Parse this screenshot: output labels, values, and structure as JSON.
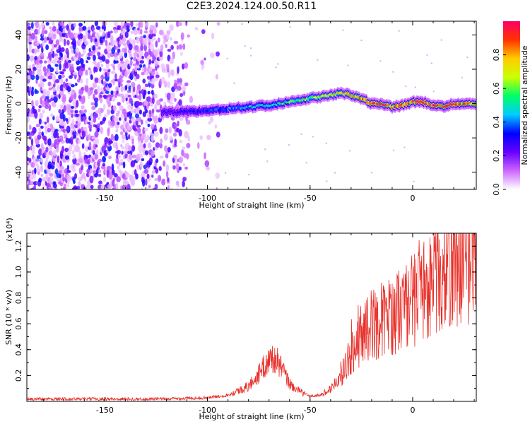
{
  "title": "C2E3.2024.124.00.50.R11",
  "chart_data": [
    {
      "type": "heatmap",
      "xlabel": "Height of straight line (km)",
      "ylabel": "Frequency (Hz)",
      "xlim": [
        -188,
        31
      ],
      "ylim": [
        -50,
        48
      ],
      "x_ticks": [
        -150,
        -100,
        -50,
        0
      ],
      "y_ticks": [
        -40,
        -20,
        0,
        20,
        40
      ],
      "colorbar": {
        "label": "Normalized spectral amplitude",
        "range": [
          0,
          1
        ],
        "ticks": [
          0.0,
          0.2,
          0.4,
          0.6,
          0.8
        ],
        "colors": [
          "#ffffff",
          "#cc66ff",
          "#6600ff",
          "#0000ff",
          "#00ccff",
          "#00ff66",
          "#ccff00",
          "#ffcc00",
          "#ff3300",
          "#ff0066"
        ]
      },
      "ridge": {
        "x": [
          -120,
          -110,
          -100,
          -90,
          -80,
          -70,
          -60,
          -50,
          -45,
          -40,
          -35,
          -30,
          -25,
          -20,
          -15,
          -10,
          -5,
          0,
          5,
          10,
          15,
          20,
          25,
          30
        ],
        "freq": [
          -5,
          -5,
          -4,
          -3,
          -2,
          -1,
          1,
          3,
          4,
          5,
          6,
          5,
          3,
          0,
          0,
          -2,
          -1,
          1,
          1,
          -1,
          -2,
          0,
          0,
          0
        ],
        "amplitude": [
          0.25,
          0.3,
          0.35,
          0.4,
          0.45,
          0.5,
          0.55,
          0.6,
          0.65,
          0.7,
          0.72,
          0.75,
          0.8,
          0.9,
          0.92,
          0.85,
          0.88,
          0.9,
          0.9,
          0.92,
          0.9,
          0.9,
          0.88,
          0.85
        ]
      }
    },
    {
      "type": "line",
      "xlabel": "Height of straight line (km)",
      "ylabel": "SNR (10 * v/v)",
      "scale_note": "(x10⁴)",
      "xlim": [
        -188,
        31
      ],
      "ylim": [
        0,
        1.3
      ],
      "x_ticks": [
        -150,
        -100,
        -50,
        0
      ],
      "y_ticks": [
        0.2,
        0.4,
        0.6,
        0.8,
        1.0,
        1.2
      ],
      "color": "#e8302a",
      "envelope": {
        "x": [
          -188,
          -120,
          -100,
          -90,
          -80,
          -75,
          -70,
          -68,
          -65,
          -60,
          -55,
          -50,
          -45,
          -40,
          -35,
          -30,
          -25,
          -20,
          -15,
          -10,
          -5,
          0,
          5,
          10,
          15,
          20,
          25,
          31
        ],
        "y": [
          0.02,
          0.02,
          0.03,
          0.05,
          0.12,
          0.22,
          0.33,
          0.35,
          0.3,
          0.14,
          0.08,
          0.04,
          0.05,
          0.1,
          0.22,
          0.38,
          0.55,
          0.62,
          0.66,
          0.7,
          0.76,
          0.82,
          0.9,
          0.98,
          1.04,
          1.1,
          1.15,
          1.2
        ]
      }
    }
  ]
}
